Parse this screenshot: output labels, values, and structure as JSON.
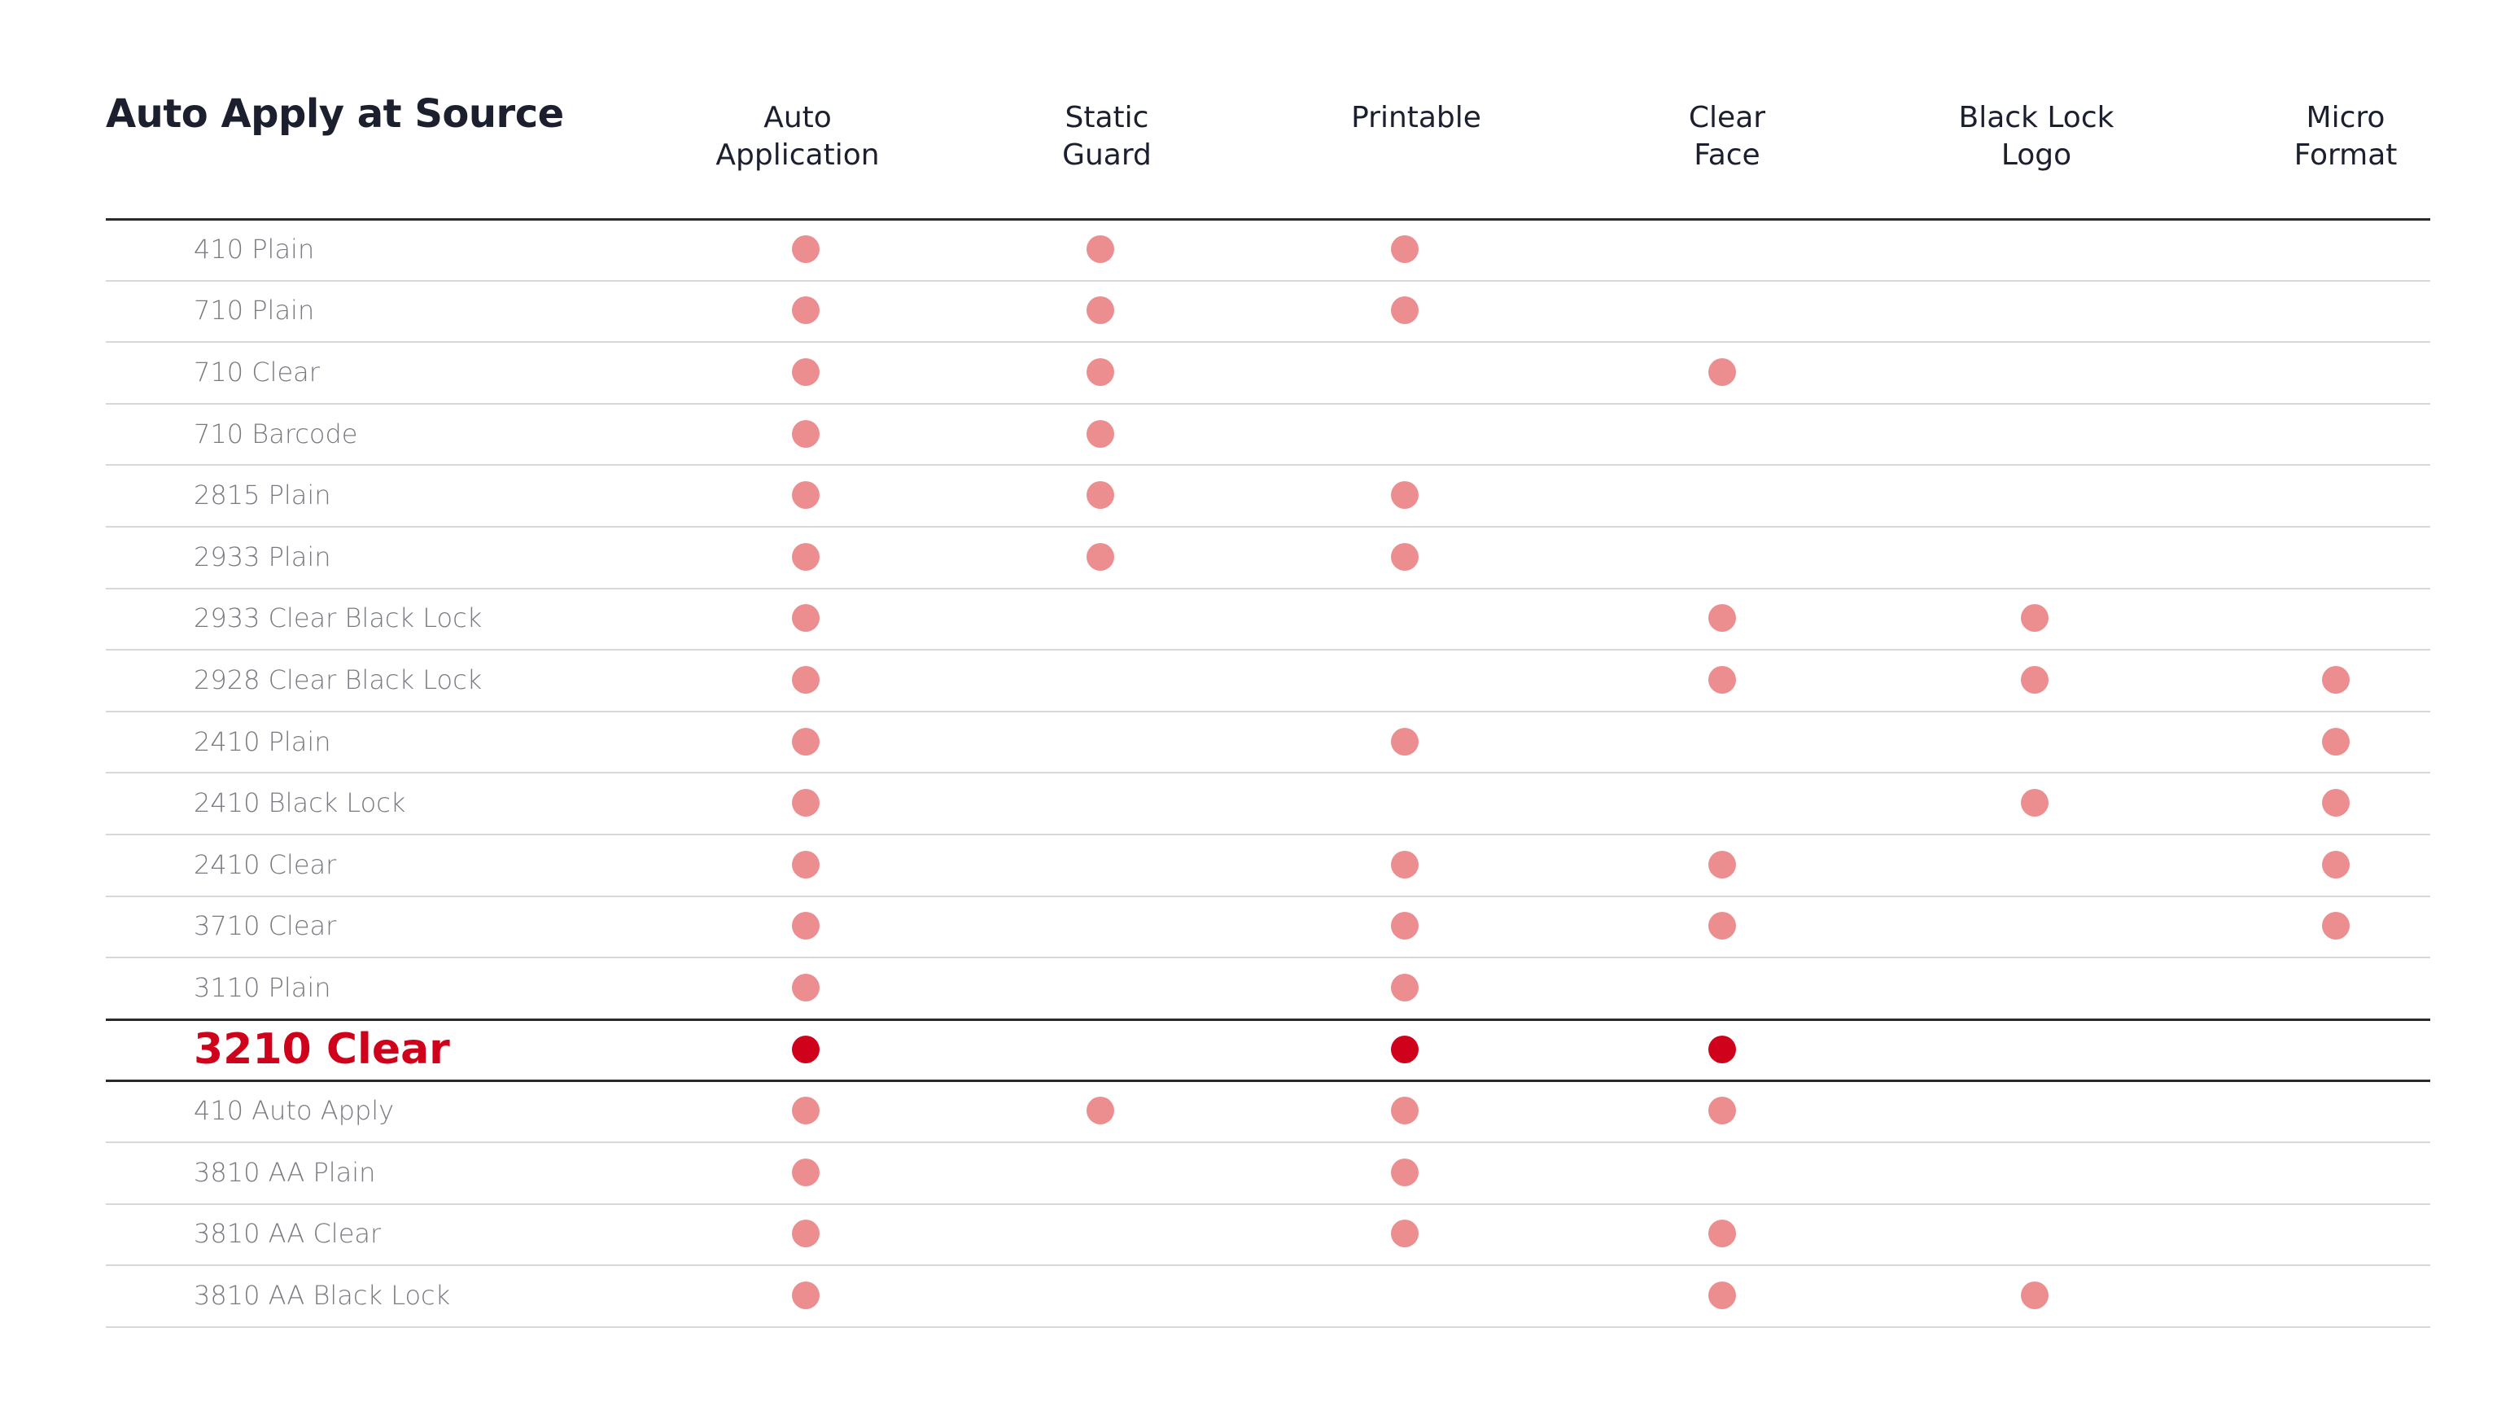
{
  "title": "Auto Apply at Source",
  "columns": [
    {
      "lines": [
        "Auto",
        "Application"
      ]
    },
    {
      "lines": [
        "Static",
        "Guard"
      ]
    },
    {
      "lines": [
        "Printable"
      ]
    },
    {
      "lines": [
        "Clear",
        "Face"
      ]
    },
    {
      "lines": [
        "Black Lock",
        "Logo"
      ]
    },
    {
      "lines": [
        "Micro",
        "Format"
      ]
    }
  ],
  "colors": {
    "dot": "#ec8d8f",
    "highlight": "#d0021b",
    "text": "#1b1f2e",
    "row_text": "#777a80"
  },
  "rows": [
    {
      "label": "410 Plain",
      "features": [
        true,
        true,
        true,
        false,
        false,
        false
      ]
    },
    {
      "label": "710 Plain",
      "features": [
        true,
        true,
        true,
        false,
        false,
        false
      ]
    },
    {
      "label": "710 Clear",
      "features": [
        true,
        true,
        false,
        true,
        false,
        false
      ]
    },
    {
      "label": "710 Barcode",
      "features": [
        true,
        true,
        false,
        false,
        false,
        false
      ]
    },
    {
      "label": "2815 Plain",
      "features": [
        true,
        true,
        true,
        false,
        false,
        false
      ]
    },
    {
      "label": "2933 Plain",
      "features": [
        true,
        true,
        true,
        false,
        false,
        false
      ]
    },
    {
      "label": "2933 Clear Black Lock",
      "features": [
        true,
        false,
        false,
        true,
        true,
        false
      ]
    },
    {
      "label": "2928 Clear Black Lock",
      "features": [
        true,
        false,
        false,
        true,
        true,
        true
      ]
    },
    {
      "label": "2410 Plain",
      "features": [
        true,
        false,
        true,
        false,
        false,
        true
      ]
    },
    {
      "label": "2410 Black Lock",
      "features": [
        true,
        false,
        false,
        false,
        true,
        true
      ]
    },
    {
      "label": "2410 Clear",
      "features": [
        true,
        false,
        true,
        true,
        false,
        true
      ]
    },
    {
      "label": "3710 Clear",
      "features": [
        true,
        false,
        true,
        true,
        false,
        true
      ]
    },
    {
      "label": "3110 Plain",
      "features": [
        true,
        false,
        true,
        false,
        false,
        false
      ]
    },
    {
      "label": "3210 Clear",
      "highlight": true,
      "features": [
        true,
        false,
        true,
        true,
        false,
        false
      ]
    },
    {
      "label": "410 Auto Apply",
      "features": [
        true,
        true,
        true,
        true,
        false,
        false
      ]
    },
    {
      "label": "3810 AA Plain",
      "features": [
        true,
        false,
        true,
        false,
        false,
        false
      ]
    },
    {
      "label": "3810 AA Clear",
      "features": [
        true,
        false,
        true,
        true,
        false,
        false
      ]
    },
    {
      "label": "3810 AA Black Lock",
      "features": [
        true,
        false,
        false,
        true,
        true,
        false
      ]
    }
  ]
}
